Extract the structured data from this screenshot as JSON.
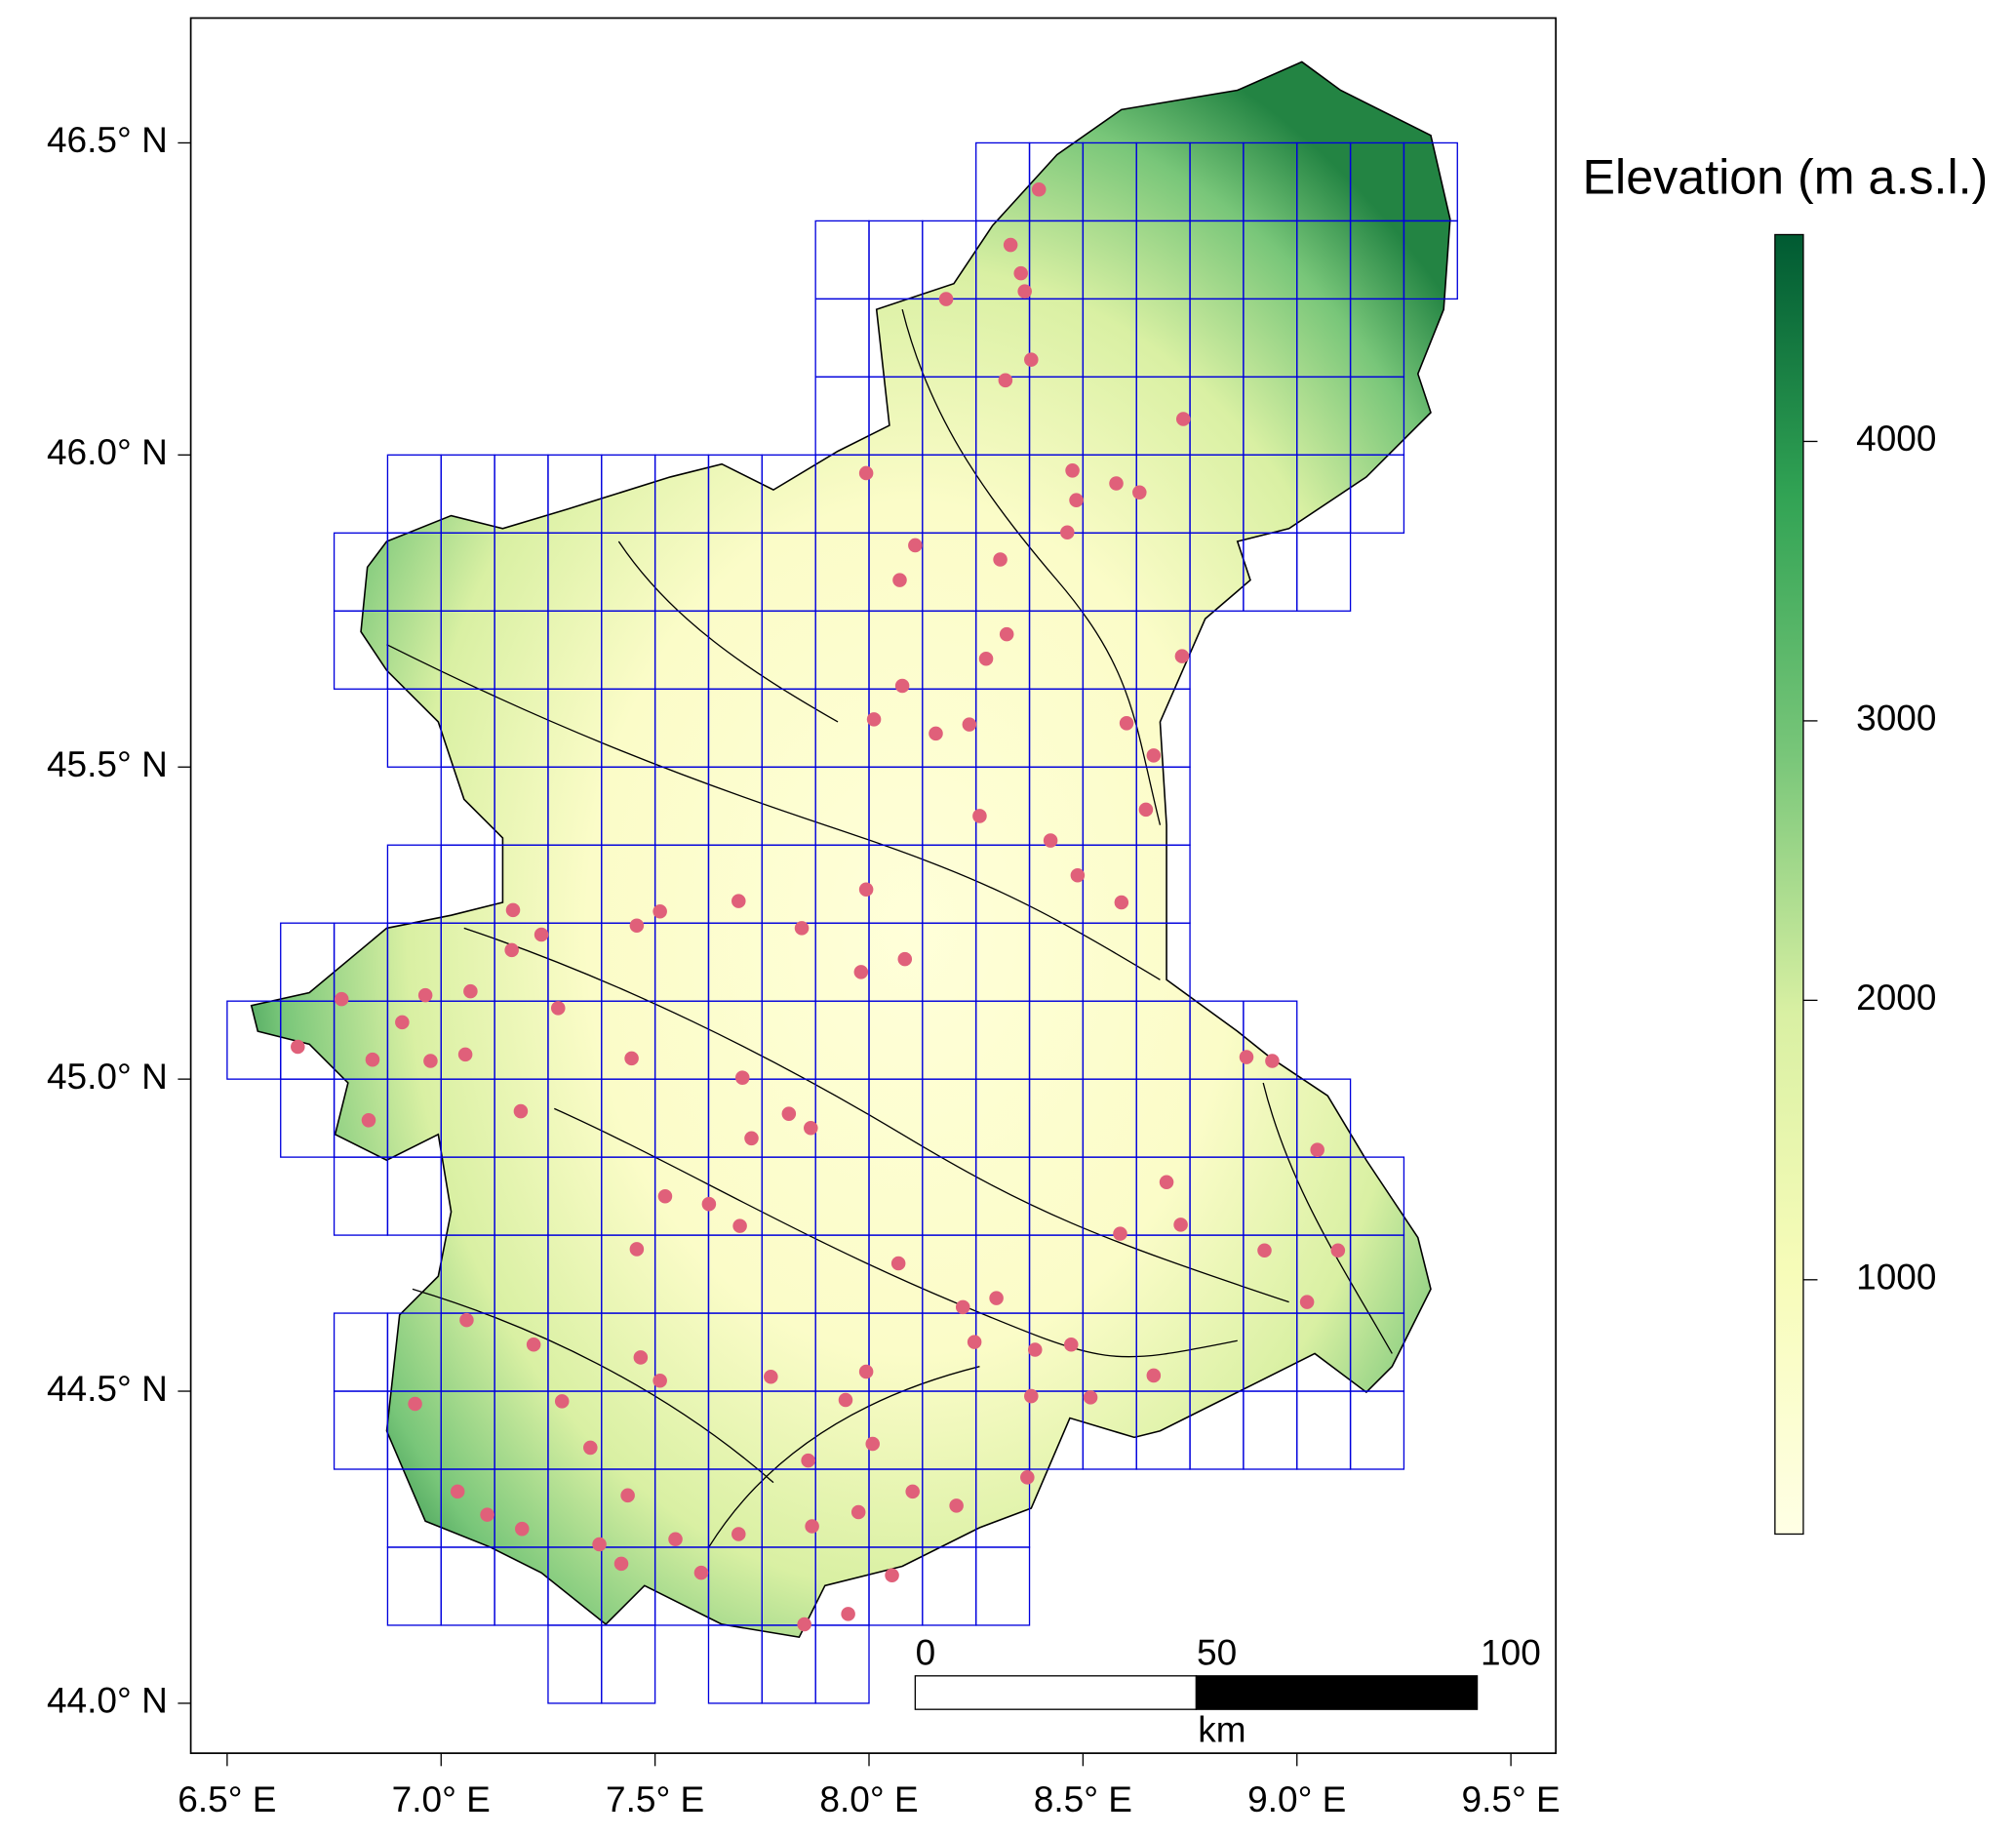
{
  "map": {
    "xlim": [
      6.415,
      9.605
    ],
    "ylim": [
      43.92,
      46.7
    ],
    "xticks": [
      {
        "value": 6.5,
        "label": "6.5° E"
      },
      {
        "value": 7.0,
        "label": "7.0° E"
      },
      {
        "value": 7.5,
        "label": "7.5° E"
      },
      {
        "value": 8.0,
        "label": "8.0° E"
      },
      {
        "value": 8.5,
        "label": "8.5° E"
      },
      {
        "value": 9.0,
        "label": "9.0° E"
      },
      {
        "value": 9.5,
        "label": "9.5° E"
      }
    ],
    "yticks": [
      {
        "value": 44.0,
        "label": "44.0° N"
      },
      {
        "value": 44.5,
        "label": "44.5° N"
      },
      {
        "value": 45.0,
        "label": "45.0° N"
      },
      {
        "value": 45.5,
        "label": "45.5° N"
      },
      {
        "value": 46.0,
        "label": "46.0° N"
      },
      {
        "value": 46.5,
        "label": "46.5° N"
      }
    ]
  },
  "colorbar": {
    "title": "Elevation (m a.s.l.)",
    "range": [
      90,
      4740
    ],
    "ticks": [
      1000,
      2000,
      3000,
      4000
    ]
  },
  "scalebar": {
    "ticks": [
      0,
      50,
      100
    ],
    "unit": "km"
  }
}
